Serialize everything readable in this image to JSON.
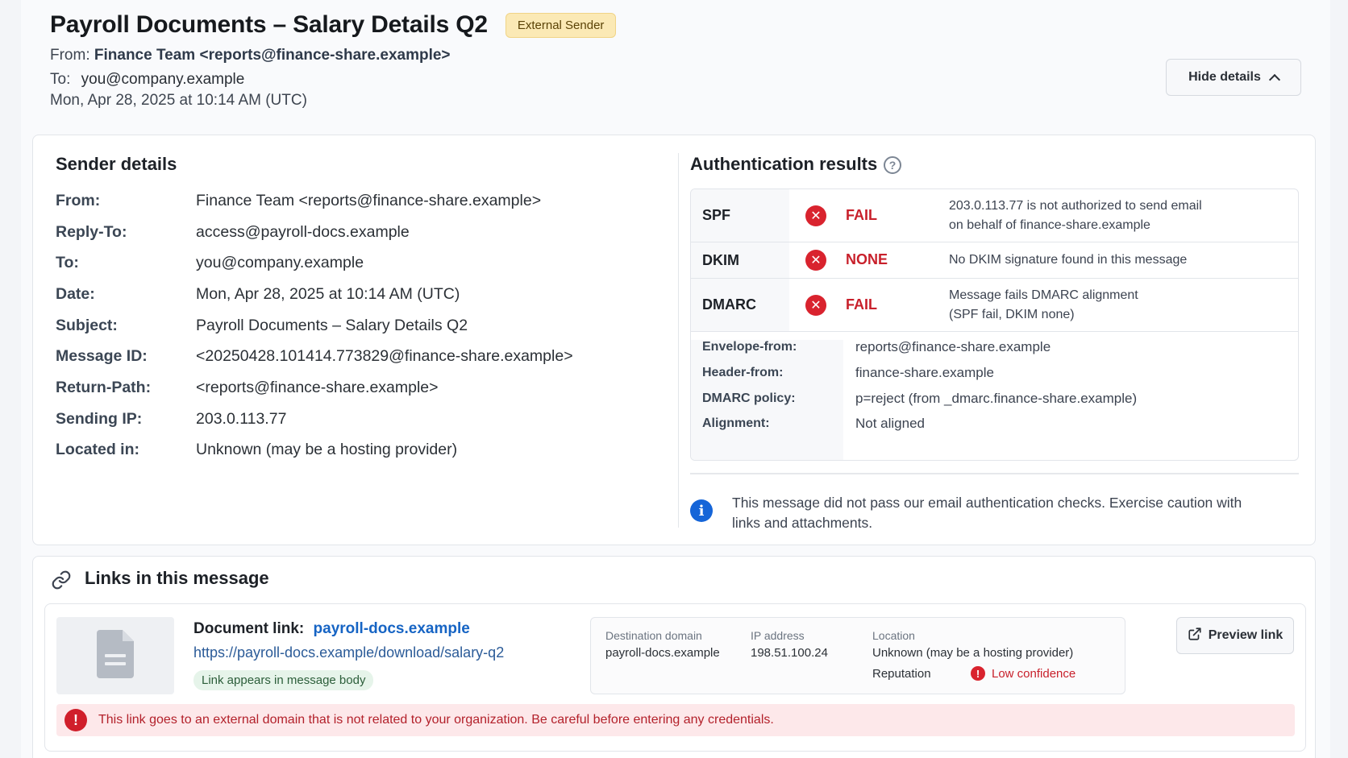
{
  "header": {
    "title": "Payroll Documents – Salary Details Q2",
    "badge": "External Sender",
    "from_label": "From:",
    "from_value": "Finance Team <reports@finance-share.example>",
    "to_label": "To:",
    "to_value": "you@company.example",
    "date": "Mon, Apr 28, 2025 at 10:14 AM (UTC)",
    "hide_details_label": "Hide details"
  },
  "sender_details": {
    "title": "Sender details",
    "rows": [
      {
        "key": "From:",
        "value": "Finance Team <reports@finance-share.example>"
      },
      {
        "key": "Reply-To:",
        "value": "access@payroll-docs.example"
      },
      {
        "key": "To:",
        "value": "you@company.example"
      },
      {
        "key": "Date:",
        "value": "Mon, Apr 28, 2025 at 10:14 AM (UTC)"
      },
      {
        "key": "Subject:",
        "value": "Payroll Documents – Salary Details Q2"
      },
      {
        "key": "Message ID:",
        "value": "<20250428.101414.773829@finance-share.example>"
      },
      {
        "key": "Return-Path:",
        "value": "<reports@finance-share.example>"
      },
      {
        "key": "Sending IP:",
        "value": "203.0.113.77"
      },
      {
        "key": "Located in:",
        "value": "Unknown (may be a hosting provider)"
      }
    ]
  },
  "auth": {
    "title": "Authentication results",
    "help_icon": "?",
    "checks": [
      {
        "name": "SPF",
        "status": "FAIL",
        "desc_line1": "203.0.113.77 is not authorized to send email",
        "desc_line2": "on behalf of finance-share.example"
      },
      {
        "name": "DKIM",
        "status": "NONE",
        "desc_line1": "No DKIM signature found in this message",
        "desc_line2": ""
      },
      {
        "name": "DMARC",
        "status": "FAIL",
        "desc_line1": "Message fails DMARC alignment",
        "desc_line2": "(SPF fail, DKIM none)"
      }
    ],
    "details": [
      {
        "key": "Envelope-from:",
        "value": "reports@finance-share.example"
      },
      {
        "key": "Header-from:",
        "value": "finance-share.example"
      },
      {
        "key": "DMARC policy:",
        "value": "p=reject (from _dmarc.finance-share.example)"
      },
      {
        "key": "Alignment:",
        "value": "Not aligned"
      }
    ],
    "info_icon": "i",
    "info_text": "This message did not pass our email authentication checks. Exercise caution with links and attachments.",
    "fail_color": "#d9232e"
  },
  "links": {
    "title": "Links in this message",
    "item": {
      "label": "Document link:",
      "domain": "payroll-docs.example",
      "url": "https://payroll-docs.example/download/salary-q2",
      "pill": "Link appears in message body",
      "dest_domain_label": "Destination domain",
      "dest_domain_value": "payroll-docs.example",
      "ip_label": "IP address",
      "ip_value": "198.51.100.24",
      "location_label": "Location",
      "location_value": "Unknown (may be a hosting provider)",
      "reputation_label": "Reputation",
      "reputation_value": "Low confidence",
      "preview_label": "Preview link"
    },
    "warning_icon": "!",
    "warning": "This link goes to an external domain that is not related to your organization. Be careful before entering any credentials."
  },
  "icons": {
    "x_glyph": "✕",
    "alert_glyph": "!"
  }
}
